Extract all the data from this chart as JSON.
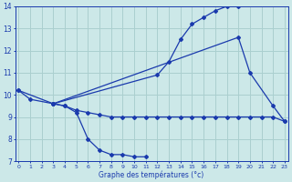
{
  "xlabel": "Graphe des températures (°c)",
  "bg_color": "#cce8e8",
  "grid_color": "#aacfcf",
  "line_color": "#1a3aad",
  "series1_x": [
    0,
    1,
    3,
    4,
    5,
    6,
    7,
    8,
    9,
    10,
    11
  ],
  "series1_y": [
    10.2,
    9.8,
    9.6,
    9.5,
    9.2,
    8.0,
    7.5,
    7.3,
    7.3,
    7.2,
    7.2
  ],
  "series2_x": [
    0,
    3,
    12,
    13,
    14,
    15,
    16,
    17,
    18,
    19
  ],
  "series2_y": [
    10.2,
    9.6,
    10.9,
    11.5,
    12.5,
    13.2,
    13.5,
    13.8,
    14.0,
    14.0
  ],
  "series3_x": [
    3,
    19,
    20,
    22,
    23
  ],
  "series3_y": [
    9.6,
    12.6,
    11.0,
    9.5,
    8.8
  ],
  "series4_x": [
    3,
    4,
    5,
    6,
    7,
    8,
    9,
    10,
    11,
    12,
    13,
    14,
    15,
    16,
    17,
    18,
    19,
    20,
    21,
    22,
    23
  ],
  "series4_y": [
    9.6,
    9.5,
    9.3,
    9.2,
    9.1,
    9.0,
    9.0,
    9.0,
    9.0,
    9.0,
    9.0,
    9.0,
    9.0,
    9.0,
    9.0,
    9.0,
    9.0,
    9.0,
    9.0,
    9.0,
    8.8
  ],
  "ylim": [
    7,
    14
  ],
  "xlim": [
    -0.3,
    23.3
  ],
  "yticks": [
    7,
    8,
    9,
    10,
    11,
    12,
    13,
    14
  ],
  "xticks": [
    0,
    1,
    2,
    3,
    4,
    5,
    6,
    7,
    8,
    9,
    10,
    11,
    12,
    13,
    14,
    15,
    16,
    17,
    18,
    19,
    20,
    21,
    22,
    23
  ]
}
